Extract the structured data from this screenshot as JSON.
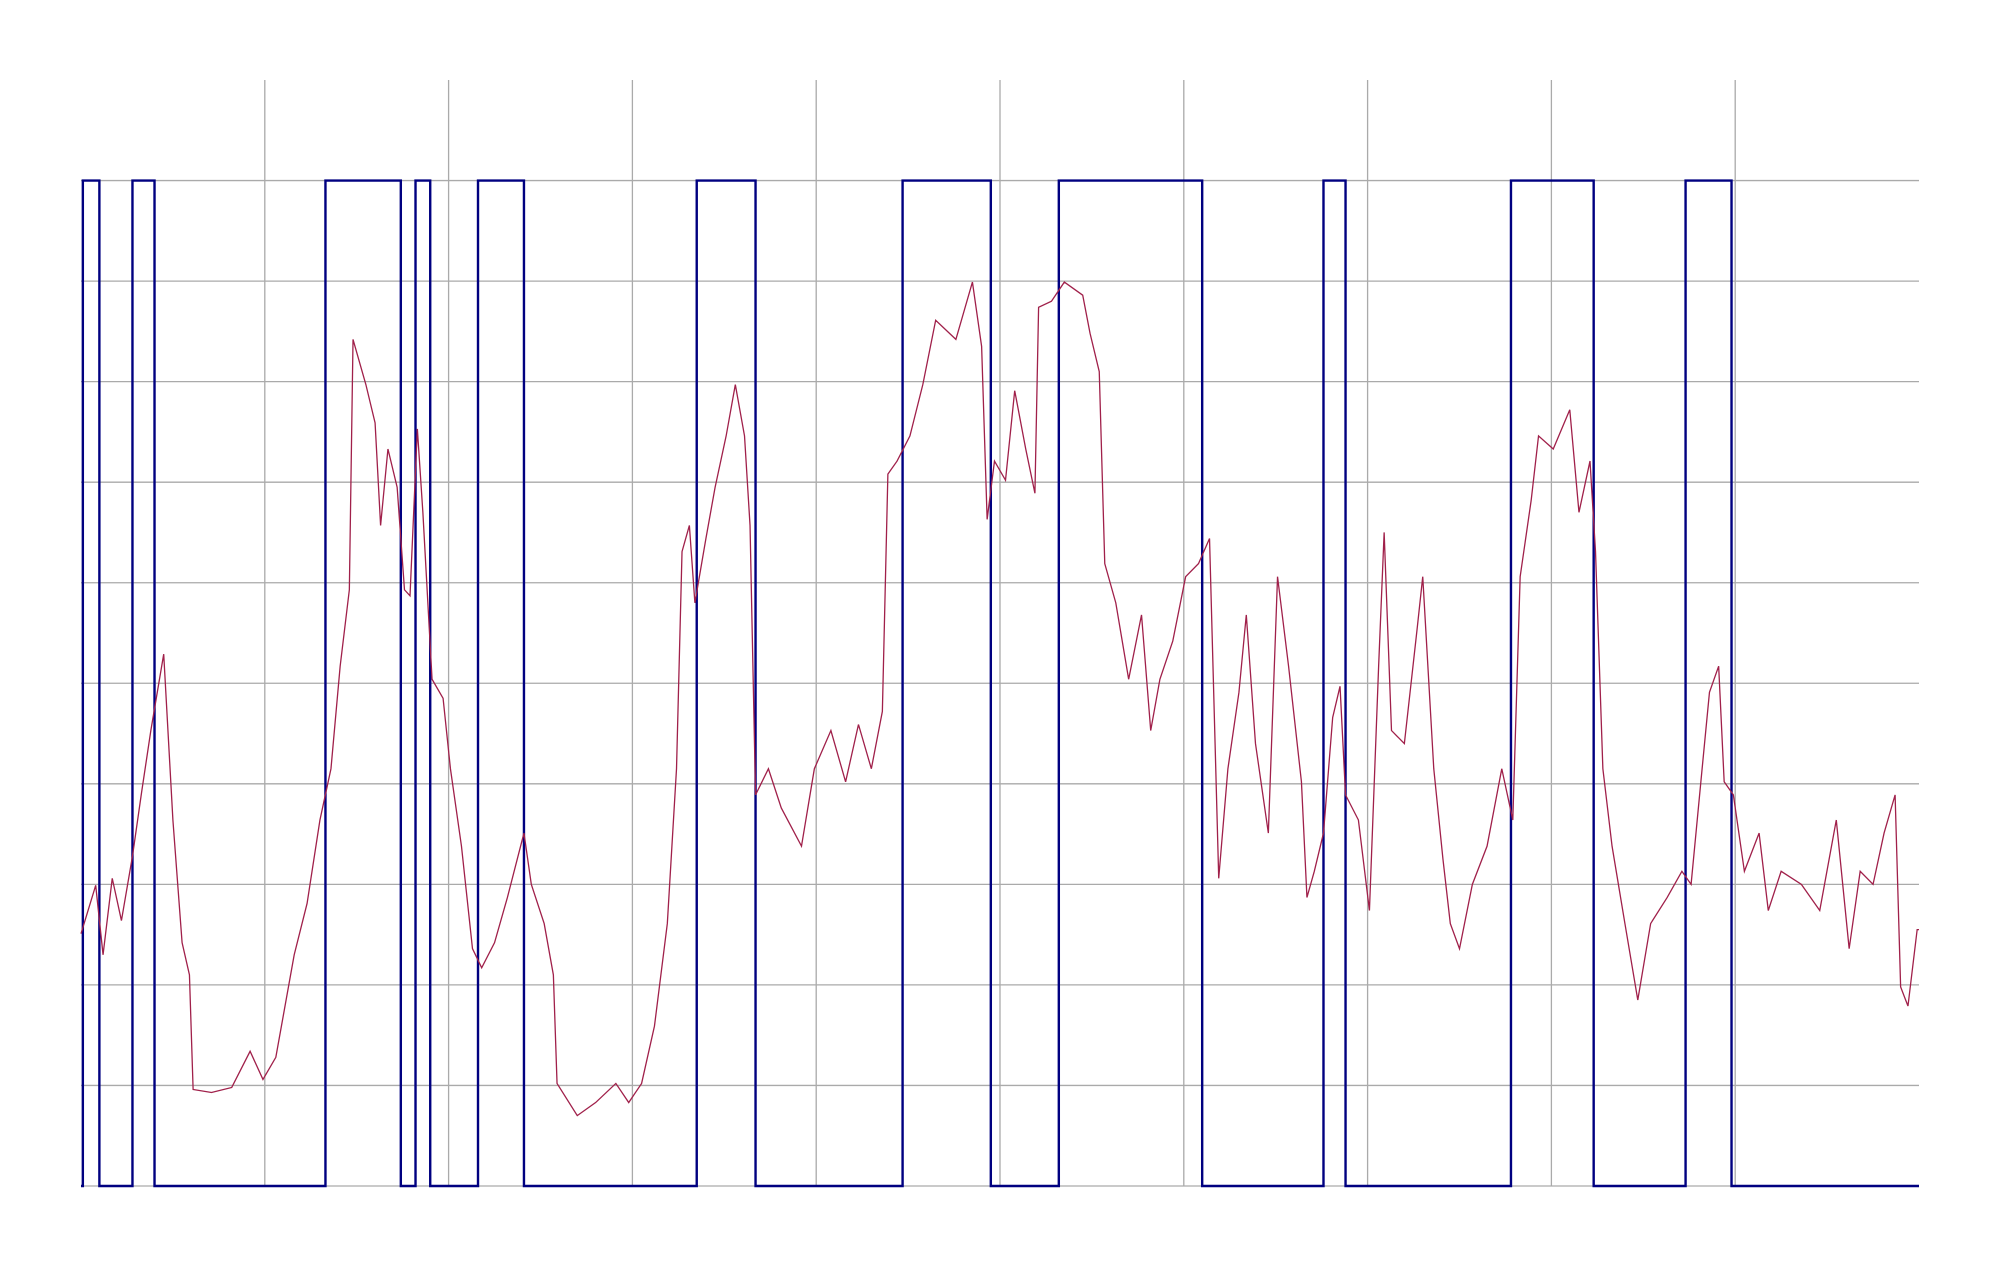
{
  "chart_data": {
    "type": "line",
    "xlim": [
      0,
      10
    ],
    "xticks": [
      1,
      2,
      3,
      4,
      5,
      6,
      7,
      8,
      9
    ],
    "ylim": [
      0,
      11
    ],
    "yticks": [
      0,
      1,
      2,
      3,
      4,
      5,
      6,
      7,
      8,
      9,
      10
    ],
    "grid": true,
    "series": [
      {
        "color": "#000080",
        "step": true,
        "x": [
          0,
          0.01,
          0.1,
          0.28,
          0.4,
          1.33,
          1.74,
          1.82,
          1.9,
          2.16,
          2.41,
          3.35,
          3.67,
          4.47,
          4.95,
          5.32,
          6.1,
          6.76,
          6.88,
          7.78,
          8.23,
          8.73,
          8.98,
          10
        ],
        "values": [
          0,
          10,
          0,
          10,
          0,
          10,
          0,
          10,
          0,
          10,
          0,
          10,
          0,
          10,
          0,
          10,
          0,
          10,
          0,
          10,
          0,
          10,
          0,
          0
        ]
      },
      {
        "color": "#a0204a",
        "step": false,
        "x": [
          0,
          0.08,
          0.12,
          0.17,
          0.22,
          0.28,
          0.33,
          0.38,
          0.45,
          0.5,
          0.55,
          0.59,
          0.61,
          0.71,
          0.82,
          0.92,
          0.99,
          1.06,
          1.16,
          1.23,
          1.3,
          1.36,
          1.41,
          1.46,
          1.48,
          1.55,
          1.6,
          1.63,
          1.67,
          1.72,
          1.76,
          1.79,
          1.83,
          1.86,
          1.91,
          1.97,
          2.01,
          2.07,
          2.13,
          2.18,
          2.25,
          2.32,
          2.41,
          2.45,
          2.52,
          2.57,
          2.59,
          2.7,
          2.8,
          2.91,
          2.98,
          3.05,
          3.12,
          3.19,
          3.24,
          3.27,
          3.31,
          3.34,
          3.4,
          3.45,
          3.51,
          3.56,
          3.61,
          3.64,
          3.67,
          3.74,
          3.81,
          3.92,
          3.99,
          4.08,
          4.16,
          4.23,
          4.3,
          4.36,
          4.39,
          4.44,
          4.51,
          4.58,
          4.65,
          4.76,
          4.85,
          4.9,
          4.93,
          4.97,
          5.03,
          5.08,
          5.14,
          5.19,
          5.21,
          5.28,
          5.35,
          5.45,
          5.49,
          5.54,
          5.57,
          5.63,
          5.7,
          5.77,
          5.82,
          5.87,
          5.94,
          6.01,
          6.08,
          6.14,
          6.19,
          6.24,
          6.3,
          6.34,
          6.39,
          6.46,
          6.51,
          6.57,
          6.64,
          6.67,
          6.71,
          6.76,
          6.81,
          6.85,
          6.88,
          6.95,
          7.01,
          7.06,
          7.09,
          7.13,
          7.2,
          7.27,
          7.3,
          7.36,
          7.41,
          7.45,
          7.5,
          7.57,
          7.65,
          7.73,
          7.79,
          7.83,
          7.89,
          7.93,
          8.01,
          8.1,
          8.15,
          8.21,
          8.24,
          8.28,
          8.33,
          8.4,
          8.47,
          8.54,
          8.63,
          8.71,
          8.76,
          8.82,
          8.86,
          8.91,
          8.94,
          8.99,
          9.05,
          9.13,
          9.18,
          9.25,
          9.36,
          9.46,
          9.55,
          9.62,
          9.68,
          9.75,
          9.81,
          9.87,
          9.9,
          9.94,
          9.99,
          10
        ],
        "values": [
          2.51,
          2.99,
          2.3,
          3.06,
          2.64,
          3.28,
          3.92,
          4.53,
          5.29,
          3.64,
          2.42,
          2.1,
          0.96,
          0.93,
          0.98,
          1.34,
          1.06,
          1.28,
          2.3,
          2.81,
          3.64,
          4.15,
          5.17,
          5.93,
          8.42,
          7.97,
          7.59,
          6.57,
          7.33,
          6.95,
          5.93,
          5.87,
          7.53,
          6.7,
          5.04,
          4.85,
          4.15,
          3.38,
          2.36,
          2.17,
          2.42,
          2.87,
          3.51,
          3.0,
          2.61,
          2.1,
          1.02,
          0.7,
          0.83,
          1.02,
          0.83,
          1.02,
          1.59,
          2.61,
          4.15,
          6.31,
          6.57,
          5.8,
          6.44,
          6.95,
          7.46,
          7.97,
          7.46,
          6.57,
          3.89,
          4.15,
          3.76,
          3.38,
          4.15,
          4.53,
          4.02,
          4.59,
          4.15,
          4.72,
          7.08,
          7.21,
          7.46,
          7.97,
          8.61,
          8.42,
          8.99,
          8.35,
          6.63,
          7.21,
          7.02,
          7.91,
          7.33,
          6.89,
          8.74,
          8.8,
          8.99,
          8.86,
          8.48,
          8.1,
          6.19,
          5.8,
          5.04,
          5.68,
          4.53,
          5.04,
          5.42,
          6.06,
          6.19,
          6.44,
          3.06,
          4.15,
          4.91,
          5.68,
          4.4,
          3.51,
          6.06,
          5.17,
          4.02,
          2.87,
          3.13,
          3.51,
          4.66,
          4.97,
          3.89,
          3.64,
          2.74,
          5.17,
          6.5,
          4.53,
          4.4,
          5.55,
          6.06,
          4.15,
          3.25,
          2.61,
          2.36,
          3.0,
          3.38,
          4.15,
          3.64,
          6.06,
          6.82,
          7.46,
          7.33,
          7.72,
          6.7,
          7.21,
          6.31,
          4.15,
          3.38,
          2.61,
          1.85,
          2.61,
          2.87,
          3.13,
          3.0,
          4.15,
          4.91,
          5.17,
          4.02,
          3.89,
          3.13,
          3.51,
          2.74,
          3.13,
          3.0,
          2.74,
          3.64,
          2.36,
          3.13,
          3.0,
          3.51,
          3.89,
          1.98,
          1.79,
          2.55,
          2.55
        ]
      }
    ]
  }
}
